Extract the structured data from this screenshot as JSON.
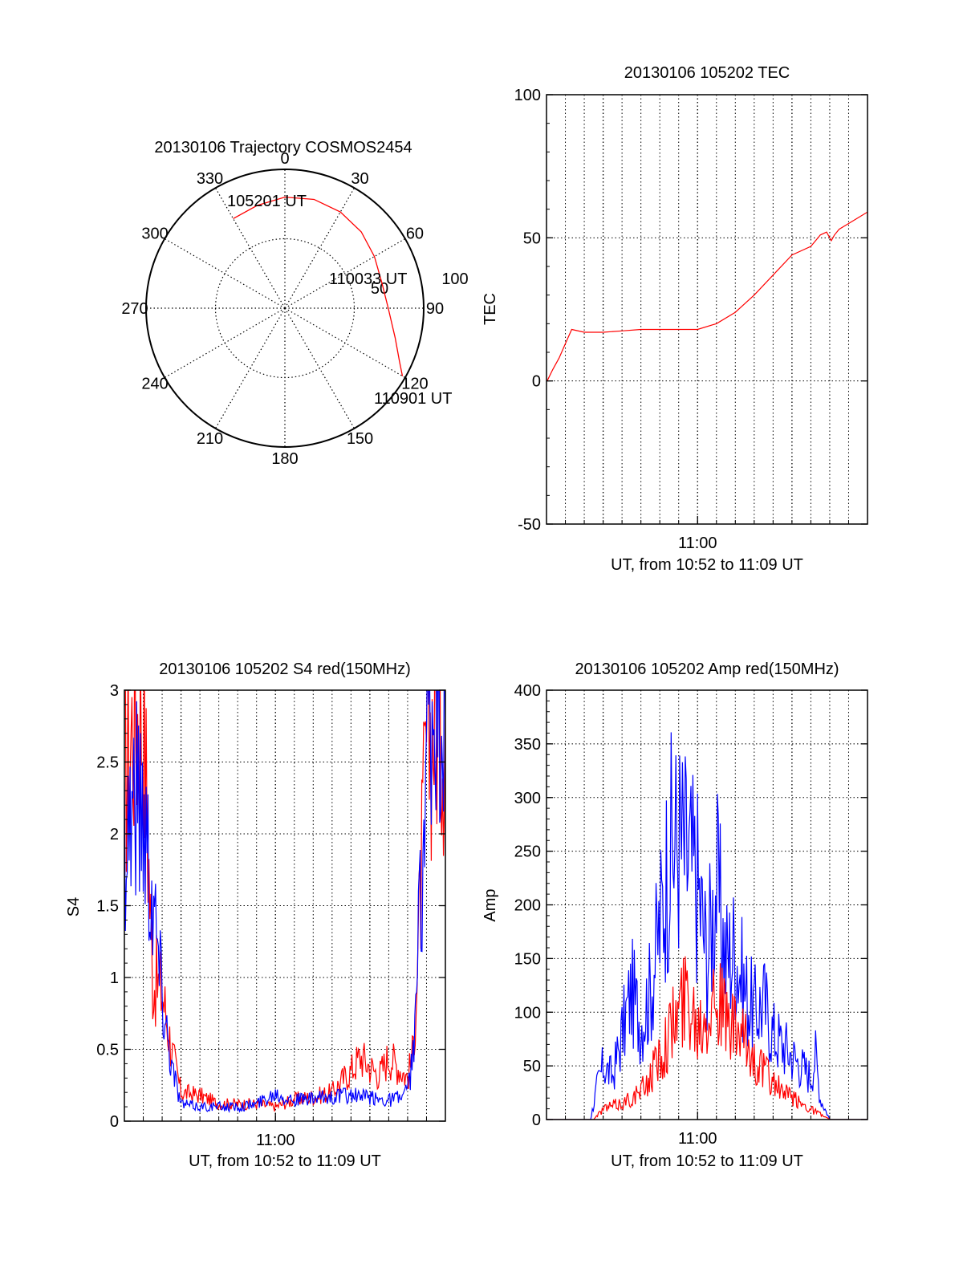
{
  "colors": {
    "red": "#ff0000",
    "blue": "#0000ff",
    "axis": "#000000",
    "grid": "#000000"
  },
  "chart_data": [
    {
      "id": "polar",
      "type": "scatter",
      "title": "20130106 Trajectory COSMOS2454",
      "azimuth_labels": [
        "0",
        "30",
        "60",
        "90",
        "120",
        "150",
        "180",
        "210",
        "240",
        "270",
        "300",
        "330"
      ],
      "elevation_rings": [
        "50",
        "100"
      ],
      "series": [
        {
          "color": "red",
          "points": [
            [
              330,
              67
            ],
            [
              345,
              69
            ],
            [
              0,
              72
            ],
            [
              15,
              73
            ],
            [
              30,
              72
            ],
            [
              45,
              70
            ],
            [
              60,
              67
            ],
            [
              75,
              65
            ],
            [
              90,
              67
            ],
            [
              105,
              74
            ],
            [
              115,
              82
            ],
            [
              120,
              88
            ]
          ]
        }
      ],
      "annotations": [
        {
          "text": "105201 UT",
          "az": 330,
          "el": 67
        },
        {
          "text": "110033 UT",
          "az": 78,
          "el": 65
        },
        {
          "text": "110901 UT",
          "az": 120,
          "el": 88
        }
      ]
    },
    {
      "id": "tec",
      "type": "line",
      "title": "20130106 105202 TEC",
      "xlabel": "UT, from 10:52 to 11:09 UT",
      "ylabel": "TEC",
      "xlim": [
        "10:52",
        "11:09"
      ],
      "ylim": [
        -50,
        100
      ],
      "yticks": [
        "-50",
        "0",
        "50",
        "100"
      ],
      "xticks": [
        {
          "t": "11:00",
          "label": "11:00"
        }
      ],
      "grid": true,
      "series": [
        {
          "color": "red",
          "x": [
            "10:52:02",
            "10:52:20",
            "10:52:40",
            "10:53:00",
            "10:53:20",
            "10:54:00",
            "10:55:00",
            "10:56:00",
            "10:57:00",
            "10:58:00",
            "10:59:00",
            "11:00:00",
            "11:01:00",
            "11:02:00",
            "11:03:00",
            "11:04:00",
            "11:05:00",
            "11:06:00",
            "11:06:30",
            "11:06:50",
            "11:07:05",
            "11:07:15",
            "11:07:30",
            "11:08:00",
            "11:08:30",
            "11:09:00"
          ],
          "y": [
            0,
            4,
            8,
            13,
            18,
            17,
            17,
            17.5,
            18,
            18,
            18,
            18,
            20,
            24,
            30,
            37,
            44,
            47,
            51,
            52,
            49,
            51,
            53,
            55,
            57,
            59
          ]
        }
      ]
    },
    {
      "id": "s4",
      "type": "line",
      "title": "20130106 105202 S4 red(150MHz)",
      "xlabel": "UT, from 10:52 to 11:09 UT",
      "ylabel": "S4",
      "xlim": [
        "10:52",
        "11:09"
      ],
      "ylim": [
        0,
        3
      ],
      "yticks": [
        "0",
        "0.5",
        "1",
        "1.5",
        "2",
        "2.5",
        "3"
      ],
      "xticks": [
        {
          "t": "11:00",
          "label": "11:00"
        }
      ],
      "grid": true,
      "series": [
        {
          "color": "red",
          "x": [
            "10:52:00",
            "10:52:30",
            "10:53:00",
            "10:53:30",
            "10:54:00",
            "10:54:30",
            "10:55:00",
            "10:56:00",
            "10:57:00",
            "10:58:00",
            "10:59:00",
            "11:00:00",
            "11:01:00",
            "11:02:00",
            "11:03:00",
            "11:03:30",
            "11:04:00",
            "11:04:30",
            "11:05:00",
            "11:05:30",
            "11:06:00",
            "11:06:30",
            "11:07:00",
            "11:07:15",
            "11:07:30",
            "11:08:00",
            "11:08:30",
            "11:09:00"
          ],
          "y": [
            2.4,
            2.8,
            2.9,
            1.0,
            0.9,
            0.5,
            0.2,
            0.18,
            0.12,
            0.12,
            0.12,
            0.1,
            0.15,
            0.17,
            0.2,
            0.28,
            0.35,
            0.45,
            0.38,
            0.32,
            0.45,
            0.38,
            0.3,
            0.45,
            1.0,
            2.6,
            2.9,
            2.8
          ]
        },
        {
          "color": "blue",
          "x": [
            "10:52:00",
            "10:52:30",
            "10:53:00",
            "10:53:30",
            "10:54:00",
            "10:54:30",
            "10:55:00",
            "10:56:00",
            "10:57:00",
            "10:58:00",
            "10:59:00",
            "11:00:00",
            "11:01:00",
            "11:02:00",
            "11:03:00",
            "11:04:00",
            "11:05:00",
            "11:06:00",
            "11:06:40",
            "11:07:00",
            "11:07:20",
            "11:07:40",
            "11:08:00",
            "11:08:30",
            "11:09:00"
          ],
          "y": [
            2.0,
            2.3,
            2.2,
            1.6,
            0.9,
            0.4,
            0.12,
            0.1,
            0.1,
            0.1,
            0.12,
            0.2,
            0.15,
            0.15,
            0.17,
            0.18,
            0.16,
            0.15,
            0.17,
            0.2,
            0.5,
            1.5,
            2.5,
            2.9,
            2.8
          ]
        }
      ]
    },
    {
      "id": "amp",
      "type": "line",
      "title": "20130106 105202 Amp red(150MHz)",
      "xlabel": "UT, from 10:52 to 11:09 UT",
      "ylabel": "Amp",
      "xlim": [
        "10:52",
        "11:09"
      ],
      "ylim": [
        0,
        400
      ],
      "yticks": [
        "0",
        "50",
        "100",
        "150",
        "200",
        "250",
        "300",
        "350",
        "400"
      ],
      "xticks": [
        {
          "t": "11:00",
          "label": "11:00"
        }
      ],
      "grid": true,
      "series": [
        {
          "color": "blue",
          "x": [
            "10:52:00",
            "10:54:20",
            "10:54:40",
            "10:55:00",
            "10:55:30",
            "10:56:00",
            "10:56:30",
            "10:57:00",
            "10:57:30",
            "10:58:00",
            "10:58:30",
            "10:59:00",
            "10:59:30",
            "11:00:00",
            "11:00:30",
            "11:01:00",
            "11:01:30",
            "11:02:00",
            "11:02:30",
            "11:03:00",
            "11:03:30",
            "11:04:00",
            "11:04:30",
            "11:05:00",
            "11:05:30",
            "11:06:00",
            "11:06:15",
            "11:06:30",
            "11:07:00",
            "11:09:00"
          ],
          "y": [
            0,
            0,
            30,
            50,
            40,
            80,
            120,
            90,
            120,
            180,
            250,
            260,
            240,
            220,
            150,
            220,
            150,
            160,
            120,
            100,
            110,
            80,
            70,
            60,
            50,
            40,
            60,
            20,
            0,
            0
          ]
        },
        {
          "color": "red",
          "x": [
            "10:52:00",
            "10:54:30",
            "10:55:00",
            "10:56:00",
            "10:57:00",
            "10:57:30",
            "10:58:00",
            "10:58:30",
            "10:59:00",
            "10:59:30",
            "11:00:00",
            "11:00:30",
            "11:01:00",
            "11:01:30",
            "11:02:00",
            "11:02:30",
            "11:03:00",
            "11:03:30",
            "11:04:00",
            "11:04:30",
            "11:05:00",
            "11:05:30",
            "11:06:00",
            "11:06:30",
            "11:07:00",
            "11:09:00"
          ],
          "y": [
            0,
            0,
            10,
            15,
            25,
            40,
            60,
            80,
            100,
            120,
            90,
            110,
            120,
            90,
            80,
            70,
            55,
            45,
            35,
            25,
            20,
            15,
            10,
            5,
            0,
            0
          ]
        }
      ]
    }
  ]
}
